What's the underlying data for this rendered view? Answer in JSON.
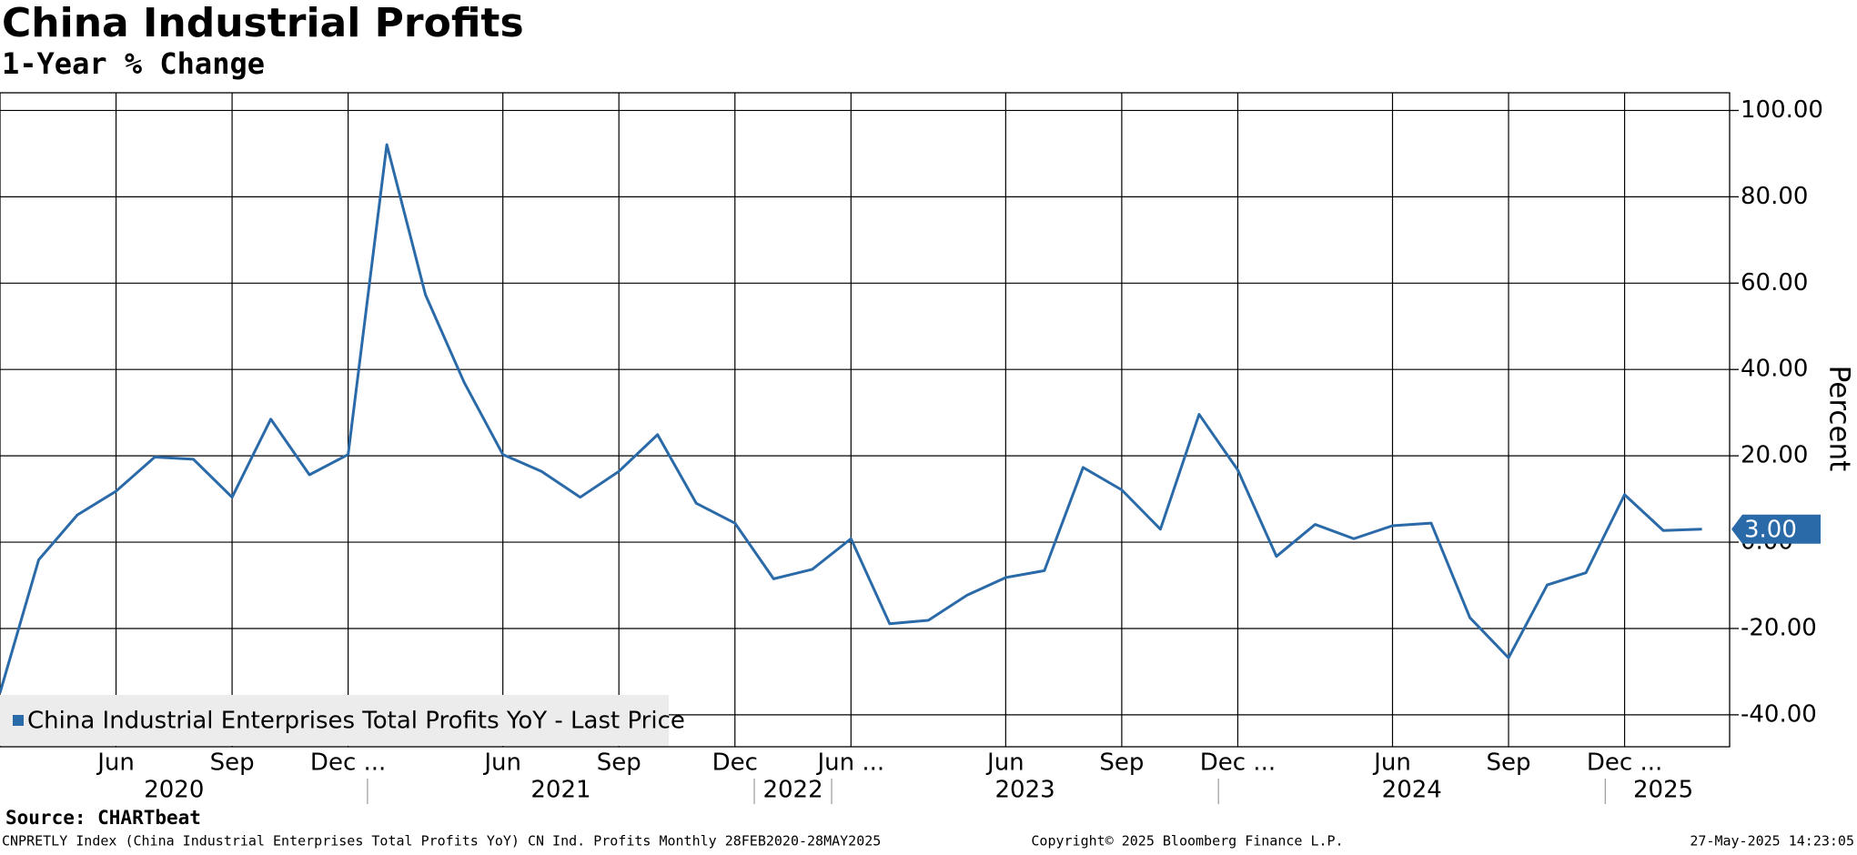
{
  "chart_data": {
    "type": "line",
    "title": "China Industrial Profits",
    "subtitle": "1-Year % Change",
    "y_label": "Percent",
    "categories": [
      null,
      null,
      null,
      "Jun",
      null,
      null,
      "Sep",
      null,
      null,
      "Dec ...",
      null,
      null,
      null,
      "Jun",
      null,
      null,
      "Sep",
      null,
      null,
      "Dec",
      null,
      null,
      "Jun ...",
      null,
      null,
      null,
      "Jun",
      null,
      null,
      "Sep",
      null,
      null,
      "Dec ...",
      null,
      null,
      null,
      "Jun",
      null,
      null,
      "Sep",
      null,
      null,
      "Dec ...",
      null,
      null
    ],
    "x_years": [
      "2020",
      "2020",
      "2020",
      "2020",
      "2020",
      "2020",
      "2020",
      "2020",
      "2020",
      "2020",
      "2021",
      "2021",
      "2021",
      "2021",
      "2021",
      "2021",
      "2021",
      "2021",
      "2021",
      "2021",
      "2022",
      "2022",
      "2023",
      "2023",
      "2023",
      "2023",
      "2023",
      "2023",
      "2023",
      "2023",
      "2023",
      "2023",
      "2024",
      "2024",
      "2024",
      "2024",
      "2024",
      "2024",
      "2024",
      "2024",
      "2024",
      "2024",
      "2025",
      "2025",
      "2025"
    ],
    "series": [
      {
        "name": "China Industrial Enterprises Total Profits YoY - Last Price",
        "color": "#2a6aa8",
        "values": [
          -34.9,
          -4.1,
          6.3,
          11.8,
          19.7,
          19.2,
          10.4,
          28.5,
          15.6,
          20.3,
          92.1,
          57.3,
          37.0,
          20.3,
          16.4,
          10.4,
          16.4,
          24.9,
          9.0,
          4.4,
          -8.5,
          -6.3,
          0.8,
          -18.9,
          -18.1,
          -12.3,
          -8.2,
          -6.6,
          17.3,
          12.1,
          3.0,
          29.6,
          16.7,
          -3.3,
          4.1,
          0.8,
          3.8,
          4.4,
          -17.5,
          -26.8,
          -9.9,
          -7.1,
          11.0,
          2.7,
          3.0
        ],
        "value_labels": [
          null,
          null,
          null,
          null,
          null,
          null,
          null,
          null,
          null,
          null,
          null,
          null,
          null,
          null,
          null,
          null,
          null,
          null,
          null,
          null,
          null,
          null,
          null,
          null,
          null,
          null,
          null,
          null,
          null,
          null,
          null,
          null,
          null,
          null,
          null,
          null,
          null,
          null,
          null,
          null,
          null,
          null,
          null,
          null,
          "3.00"
        ]
      }
    ],
    "ylim": [
      -47.4,
      104.1
    ],
    "yticks": [
      {
        "value": -40,
        "label": "-40.00"
      },
      {
        "value": -20,
        "label": "-20.00"
      },
      {
        "value": 0,
        "label": "0.00"
      },
      {
        "value": 20,
        "label": "20.00"
      },
      {
        "value": 40,
        "label": "40.00"
      },
      {
        "value": 60,
        "label": "60.00"
      },
      {
        "value": 80,
        "label": "80.00"
      },
      {
        "value": 100,
        "label": "100.00"
      }
    ],
    "grid": true,
    "legend": "bottom-left",
    "source": "Source: CHARTbeat",
    "footnote": "CNPRETLY Index (China Industrial Enterprises Total Profits YoY) CN Ind. Profits  Monthly 28FEB2020-28MAY2025",
    "copyright": "Copyright© 2025 Bloomberg Finance L.P.",
    "timestamp": "27-May-2025 14:23:05"
  }
}
